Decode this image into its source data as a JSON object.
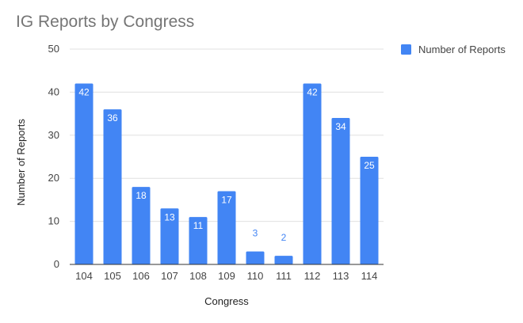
{
  "chart_data": {
    "type": "bar",
    "title": "IG Reports by Congress",
    "xlabel": "Congress",
    "ylabel": "Number of Reports",
    "categories": [
      "104",
      "105",
      "106",
      "107",
      "108",
      "109",
      "110",
      "111",
      "112",
      "113",
      "114"
    ],
    "series": [
      {
        "name": "Number of Reports",
        "values": [
          42,
          36,
          18,
          13,
          11,
          17,
          3,
          2,
          42,
          34,
          25
        ],
        "color": "#4285f4"
      }
    ],
    "ylim": [
      0,
      50
    ],
    "yticks": [
      0,
      10,
      20,
      30,
      40,
      50
    ],
    "grid": true,
    "legend_position": "right",
    "data_labels": true
  }
}
